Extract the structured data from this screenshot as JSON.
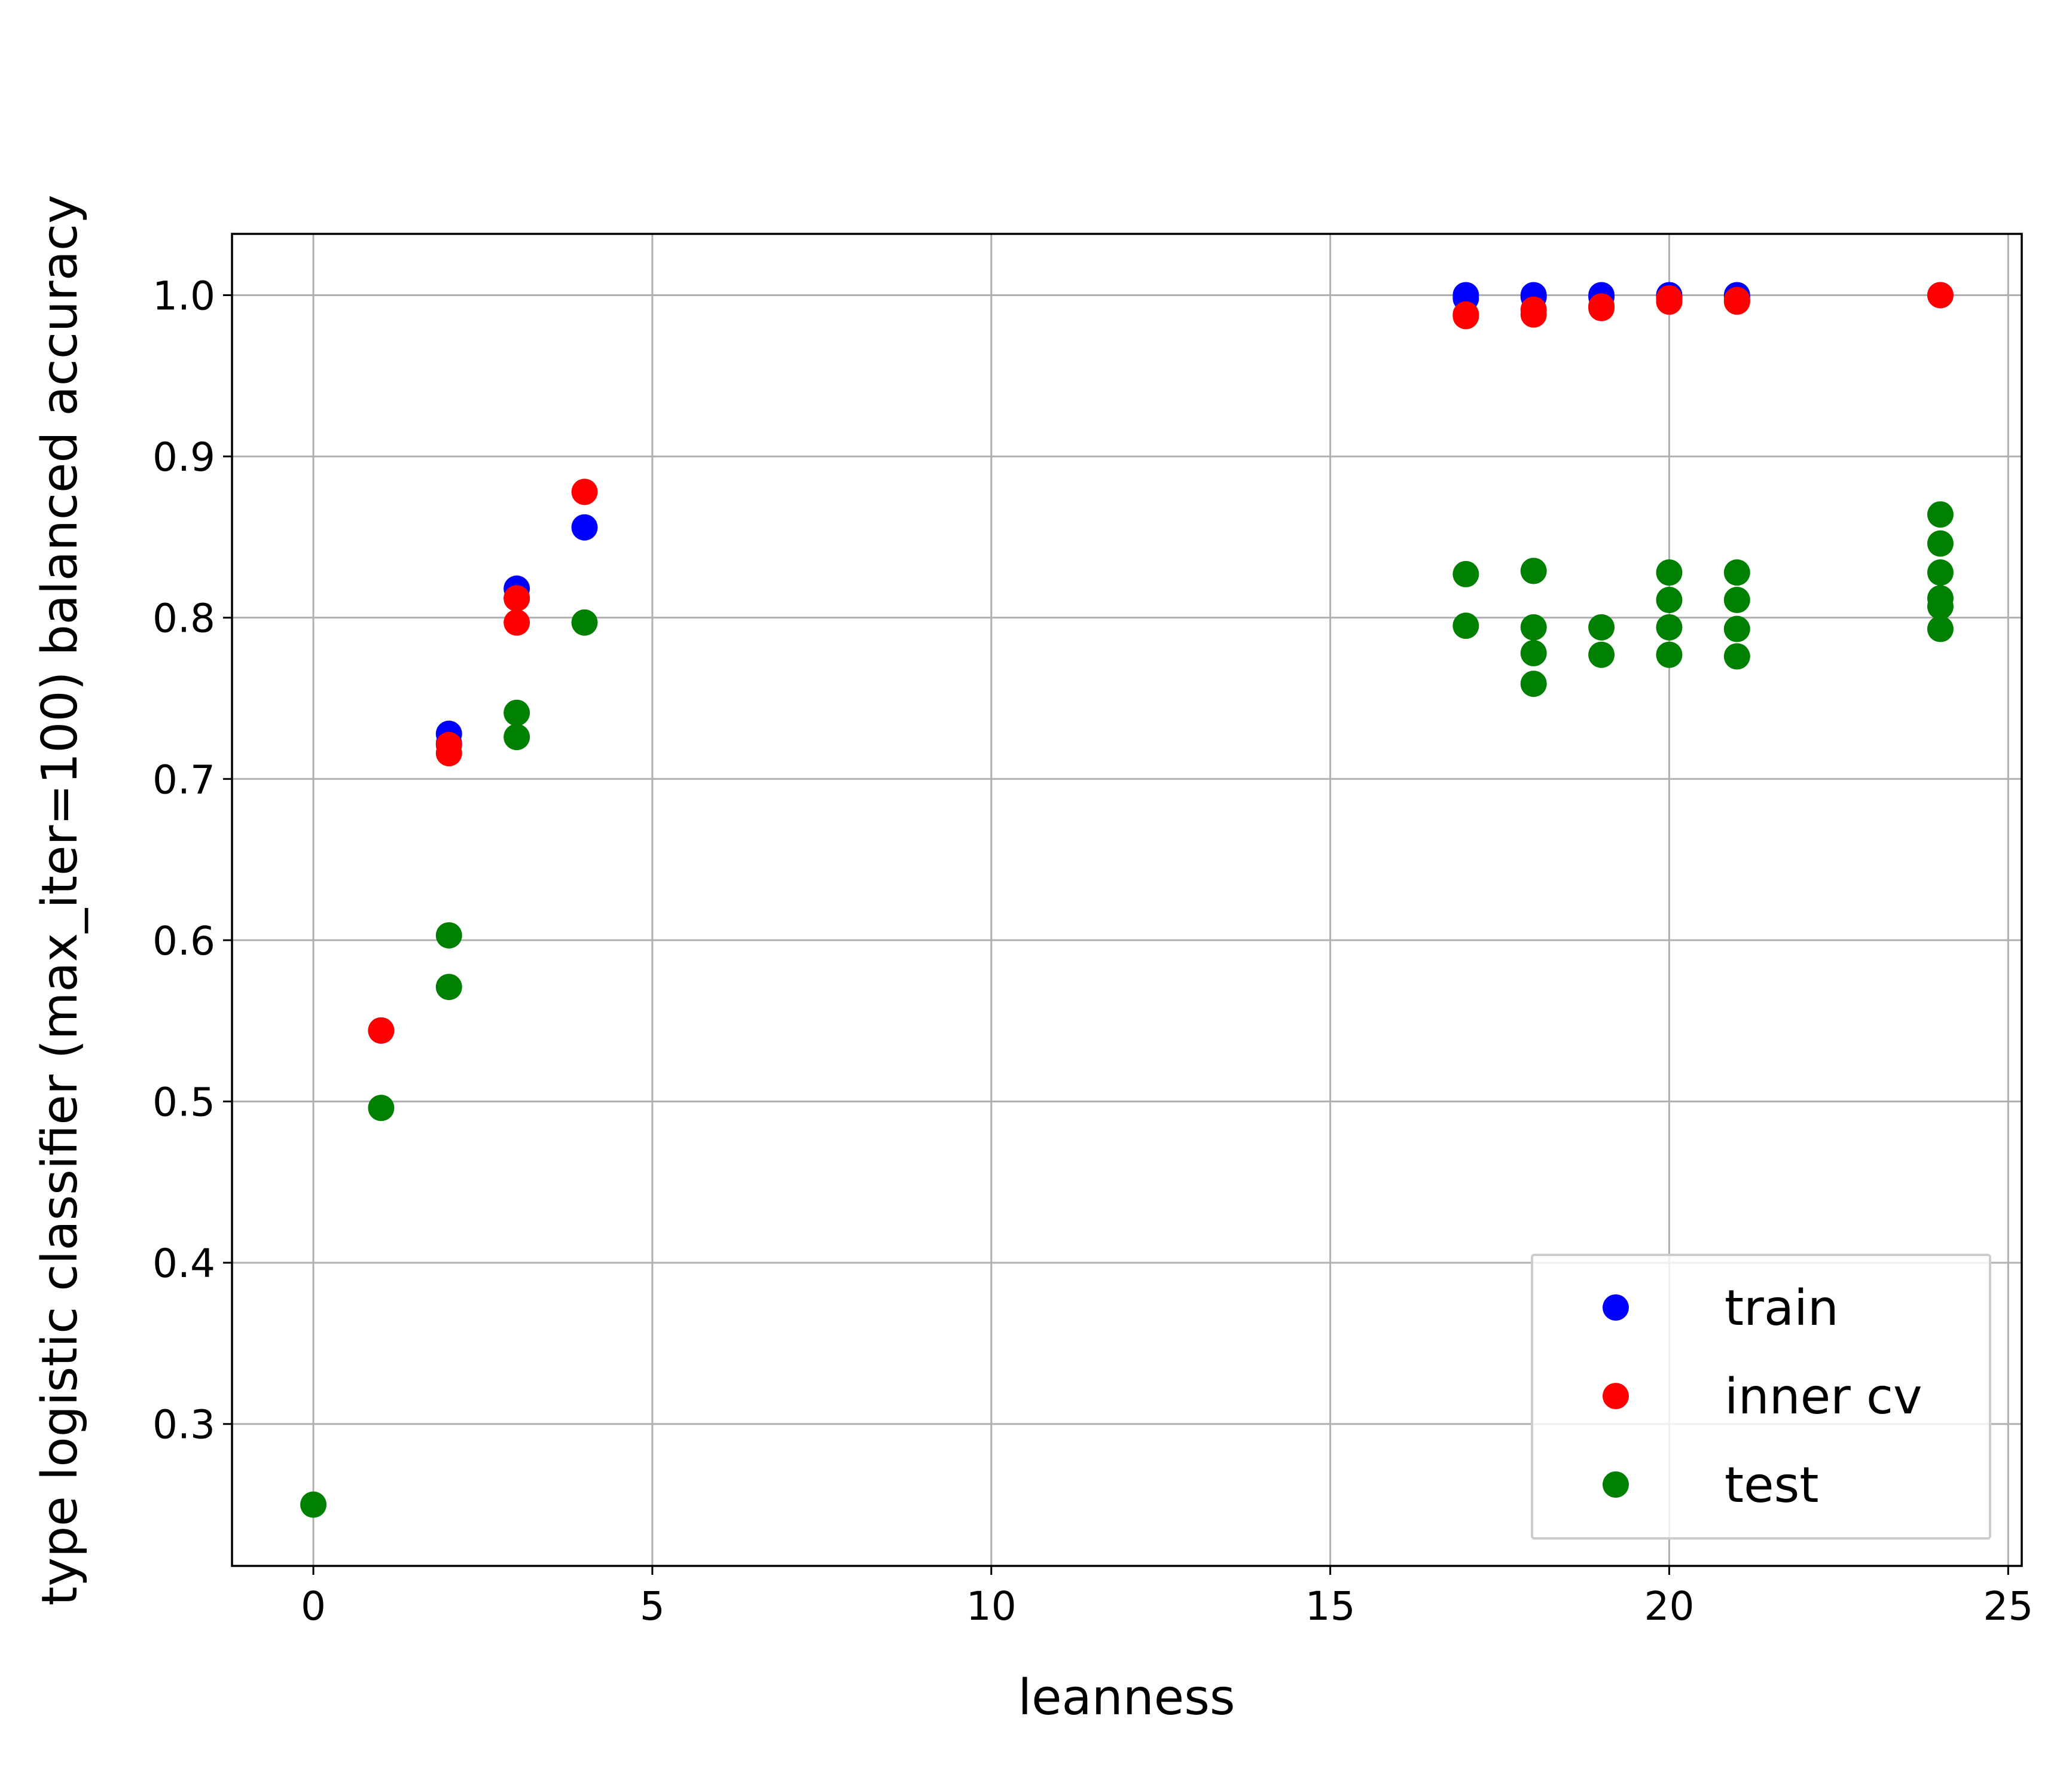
{
  "chart_data": {
    "type": "scatter",
    "title": "",
    "xlabel": "leanness",
    "ylabel": "type logistic classifier (max_iter=100) balanced accuracy",
    "xlim": [
      -1.2,
      25.2
    ],
    "ylim": [
      0.212,
      1.038
    ],
    "xticks": [
      0,
      5,
      10,
      15,
      20,
      25
    ],
    "yticks": [
      0.3,
      0.4,
      0.5,
      0.6,
      0.7,
      0.8,
      0.9,
      1.0
    ],
    "xtick_labels": [
      "0",
      "5",
      "10",
      "15",
      "20",
      "25"
    ],
    "ytick_labels": [
      "0.3",
      "0.4",
      "0.5",
      "0.6",
      "0.7",
      "0.8",
      "0.9",
      "1.0"
    ],
    "grid": true,
    "legend_position": "lower right",
    "series": [
      {
        "name": "train",
        "color": "#0000ff",
        "points": [
          [
            1,
            0.544
          ],
          [
            2,
            0.728
          ],
          [
            2,
            0.722
          ],
          [
            3,
            0.818
          ],
          [
            3,
            0.812
          ],
          [
            4,
            0.856
          ],
          [
            17,
            1.0
          ],
          [
            17,
            0.998
          ],
          [
            18,
            1.0
          ],
          [
            18,
            0.999
          ],
          [
            19,
            1.0
          ],
          [
            19,
            0.999
          ],
          [
            20,
            1.0
          ],
          [
            20,
            0.999
          ],
          [
            21,
            1.0
          ],
          [
            21,
            0.999
          ],
          [
            24,
            1.0
          ]
        ]
      },
      {
        "name": "inner cv",
        "color": "#ff0000",
        "points": [
          [
            1,
            0.544
          ],
          [
            2,
            0.721
          ],
          [
            2,
            0.716
          ],
          [
            3,
            0.812
          ],
          [
            3,
            0.797
          ],
          [
            4,
            0.878
          ],
          [
            17,
            0.988
          ],
          [
            17,
            0.987
          ],
          [
            18,
            0.991
          ],
          [
            18,
            0.988
          ],
          [
            19,
            0.993
          ],
          [
            19,
            0.992
          ],
          [
            20,
            0.998
          ],
          [
            20,
            0.996
          ],
          [
            21,
            0.997
          ],
          [
            21,
            0.996
          ],
          [
            24,
            1.0
          ]
        ]
      },
      {
        "name": "test",
        "color": "#008000",
        "points": [
          [
            0,
            0.25
          ],
          [
            1,
            0.496
          ],
          [
            2,
            0.603
          ],
          [
            2,
            0.571
          ],
          [
            3,
            0.741
          ],
          [
            3,
            0.726
          ],
          [
            4,
            0.797
          ],
          [
            17,
            0.827
          ],
          [
            17,
            0.795
          ],
          [
            18,
            0.829
          ],
          [
            18,
            0.794
          ],
          [
            18,
            0.778
          ],
          [
            18,
            0.759
          ],
          [
            19,
            0.794
          ],
          [
            19,
            0.777
          ],
          [
            20,
            0.828
          ],
          [
            20,
            0.811
          ],
          [
            20,
            0.794
          ],
          [
            20,
            0.777
          ],
          [
            21,
            0.828
          ],
          [
            21,
            0.811
          ],
          [
            21,
            0.793
          ],
          [
            21,
            0.776
          ],
          [
            24,
            0.864
          ],
          [
            24,
            0.846
          ],
          [
            24,
            0.828
          ],
          [
            24,
            0.812
          ],
          [
            24,
            0.807
          ],
          [
            24,
            0.793
          ]
        ]
      }
    ]
  }
}
